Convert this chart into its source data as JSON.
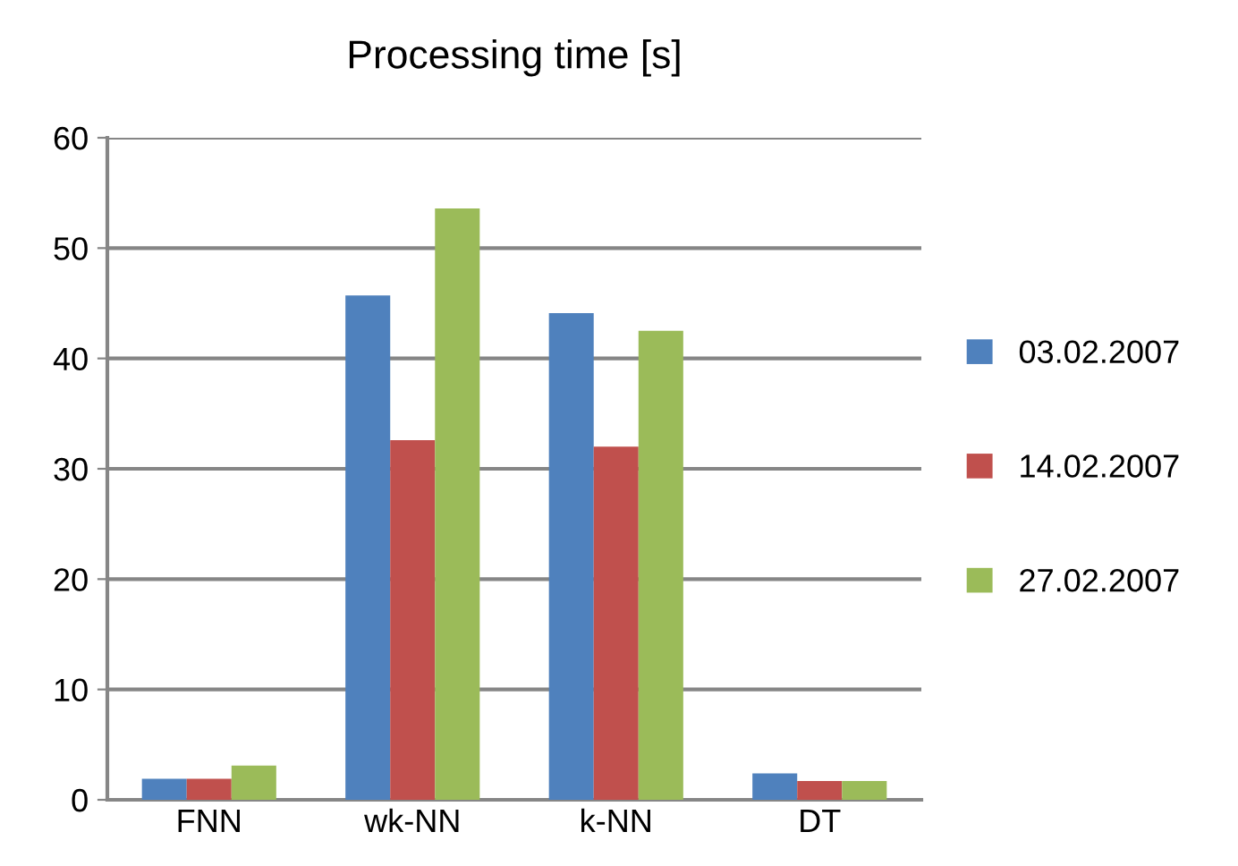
{
  "chart_data": {
    "type": "bar",
    "title": "Processing time [s]",
    "categories": [
      "FNN",
      "wk-NN",
      "k-NN",
      "DT"
    ],
    "series": [
      {
        "name": "03.02.2007",
        "color": "#4f81bd",
        "values": [
          1.9,
          45.7,
          44.1,
          2.4
        ]
      },
      {
        "name": "14.02.2007",
        "color": "#c0504d",
        "values": [
          1.9,
          32.6,
          32.0,
          1.7
        ]
      },
      {
        "name": "27.02.2007",
        "color": "#9bbb59",
        "values": [
          3.1,
          53.6,
          42.5,
          1.7
        ]
      }
    ],
    "ylim": [
      0,
      60
    ],
    "yticks": [
      0,
      10,
      20,
      30,
      40,
      50,
      60
    ],
    "grid": "y",
    "legend": "right"
  }
}
